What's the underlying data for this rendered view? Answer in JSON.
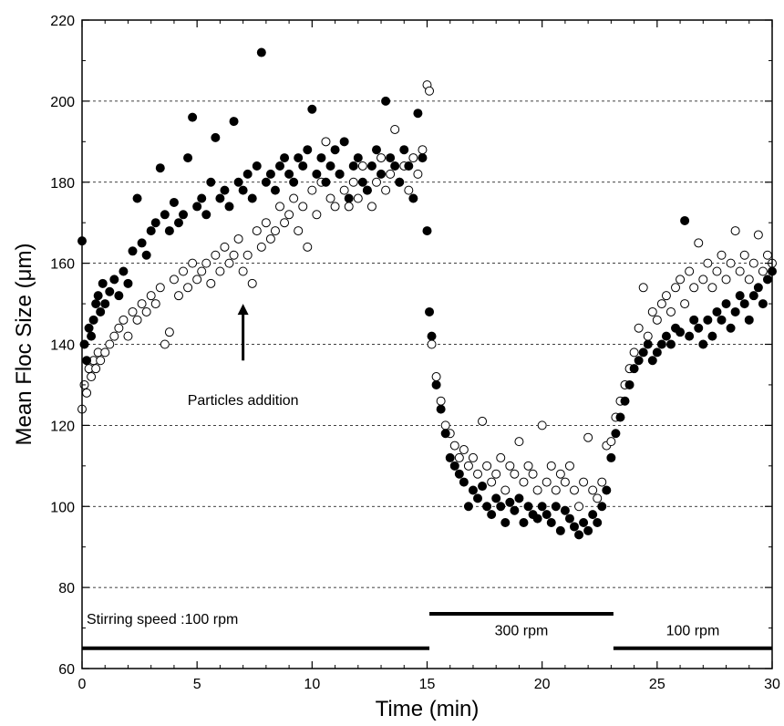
{
  "chart_data": {
    "type": "scatter",
    "title": "",
    "xlabel": "Time (min)",
    "ylabel": "Mean Floc Size (μm)",
    "xlim": [
      0,
      30
    ],
    "ylim": [
      60,
      220
    ],
    "xticks": [
      0,
      5,
      10,
      15,
      20,
      25,
      30
    ],
    "yticks": [
      60,
      80,
      100,
      120,
      140,
      160,
      180,
      200,
      220
    ],
    "grid": "horizontal dashed",
    "series": [
      {
        "marker": "filled-circle",
        "color": "#000000",
        "points": [
          [
            0.0,
            165.5
          ],
          [
            0.1,
            140
          ],
          [
            0.2,
            136
          ],
          [
            0.3,
            144
          ],
          [
            0.4,
            142
          ],
          [
            0.5,
            146
          ],
          [
            0.6,
            150
          ],
          [
            0.7,
            152
          ],
          [
            0.8,
            148
          ],
          [
            0.9,
            155
          ],
          [
            1.0,
            150
          ],
          [
            1.2,
            153
          ],
          [
            1.4,
            156
          ],
          [
            1.6,
            152
          ],
          [
            1.8,
            158
          ],
          [
            2.0,
            155
          ],
          [
            2.2,
            163
          ],
          [
            2.4,
            176
          ],
          [
            2.6,
            165
          ],
          [
            2.8,
            162
          ],
          [
            3.0,
            168
          ],
          [
            3.2,
            170
          ],
          [
            3.4,
            183.5
          ],
          [
            3.6,
            172
          ],
          [
            3.8,
            168
          ],
          [
            4.0,
            175
          ],
          [
            4.2,
            170
          ],
          [
            4.4,
            172
          ],
          [
            4.6,
            186
          ],
          [
            4.8,
            196
          ],
          [
            5.0,
            174
          ],
          [
            5.2,
            176
          ],
          [
            5.4,
            172
          ],
          [
            5.6,
            180
          ],
          [
            5.8,
            191
          ],
          [
            6.0,
            176
          ],
          [
            6.2,
            178
          ],
          [
            6.4,
            174
          ],
          [
            6.6,
            195
          ],
          [
            6.8,
            180
          ],
          [
            7.0,
            178
          ],
          [
            7.2,
            182
          ],
          [
            7.4,
            176
          ],
          [
            7.6,
            184
          ],
          [
            7.8,
            212
          ],
          [
            8.0,
            180
          ],
          [
            8.2,
            182
          ],
          [
            8.4,
            178
          ],
          [
            8.6,
            184
          ],
          [
            8.8,
            186
          ],
          [
            9.0,
            182
          ],
          [
            9.2,
            180
          ],
          [
            9.4,
            186
          ],
          [
            9.6,
            184
          ],
          [
            9.8,
            188
          ],
          [
            10.0,
            198
          ],
          [
            10.2,
            182
          ],
          [
            10.4,
            186
          ],
          [
            10.6,
            180
          ],
          [
            10.8,
            184
          ],
          [
            11.0,
            188
          ],
          [
            11.2,
            182
          ],
          [
            11.4,
            190
          ],
          [
            11.6,
            176
          ],
          [
            11.8,
            184
          ],
          [
            12.0,
            186
          ],
          [
            12.2,
            180
          ],
          [
            12.4,
            178
          ],
          [
            12.6,
            184
          ],
          [
            12.8,
            188
          ],
          [
            13.0,
            182
          ],
          [
            13.2,
            200
          ],
          [
            13.4,
            186
          ],
          [
            13.6,
            184
          ],
          [
            13.8,
            180
          ],
          [
            14.0,
            188
          ],
          [
            14.2,
            184
          ],
          [
            14.4,
            176
          ],
          [
            14.6,
            197
          ],
          [
            14.8,
            186
          ],
          [
            15.0,
            168
          ],
          [
            15.1,
            148
          ],
          [
            15.2,
            142
          ],
          [
            15.4,
            130
          ],
          [
            15.6,
            124
          ],
          [
            15.8,
            118
          ],
          [
            16.0,
            112
          ],
          [
            16.2,
            110
          ],
          [
            16.4,
            108
          ],
          [
            16.6,
            106
          ],
          [
            16.8,
            100
          ],
          [
            17.0,
            104
          ],
          [
            17.2,
            102
          ],
          [
            17.4,
            105
          ],
          [
            17.6,
            100
          ],
          [
            17.8,
            98
          ],
          [
            18.0,
            102
          ],
          [
            18.2,
            100
          ],
          [
            18.4,
            96
          ],
          [
            18.6,
            101
          ],
          [
            18.8,
            99
          ],
          [
            19.0,
            102
          ],
          [
            19.2,
            96
          ],
          [
            19.4,
            100
          ],
          [
            19.6,
            98
          ],
          [
            19.8,
            97
          ],
          [
            20.0,
            100
          ],
          [
            20.2,
            98
          ],
          [
            20.4,
            96
          ],
          [
            20.6,
            100
          ],
          [
            20.8,
            94
          ],
          [
            21.0,
            99
          ],
          [
            21.2,
            97
          ],
          [
            21.4,
            95
          ],
          [
            21.6,
            93
          ],
          [
            21.8,
            96
          ],
          [
            22.0,
            94
          ],
          [
            22.2,
            98
          ],
          [
            22.4,
            96
          ],
          [
            22.6,
            100
          ],
          [
            22.8,
            104
          ],
          [
            23.0,
            112
          ],
          [
            23.2,
            118
          ],
          [
            23.4,
            122
          ],
          [
            23.6,
            126
          ],
          [
            23.8,
            130
          ],
          [
            24.0,
            134
          ],
          [
            24.2,
            136
          ],
          [
            24.4,
            138
          ],
          [
            24.6,
            140
          ],
          [
            24.8,
            136
          ],
          [
            25.0,
            138
          ],
          [
            25.2,
            140
          ],
          [
            25.4,
            142
          ],
          [
            25.6,
            140
          ],
          [
            25.8,
            144
          ],
          [
            26.0,
            143
          ],
          [
            26.2,
            170.5
          ],
          [
            26.4,
            142
          ],
          [
            26.6,
            146
          ],
          [
            26.8,
            144
          ],
          [
            27.0,
            140
          ],
          [
            27.2,
            146
          ],
          [
            27.4,
            142
          ],
          [
            27.6,
            148
          ],
          [
            27.8,
            146
          ],
          [
            28.0,
            150
          ],
          [
            28.2,
            144
          ],
          [
            28.4,
            148
          ],
          [
            28.6,
            152
          ],
          [
            28.8,
            150
          ],
          [
            29.0,
            146
          ],
          [
            29.2,
            152
          ],
          [
            29.4,
            154
          ],
          [
            29.6,
            150
          ],
          [
            29.8,
            156
          ],
          [
            30.0,
            158
          ]
        ]
      },
      {
        "marker": "open-circle",
        "color": "#000000",
        "points": [
          [
            0.0,
            124
          ],
          [
            0.1,
            130
          ],
          [
            0.2,
            128
          ],
          [
            0.3,
            134
          ],
          [
            0.4,
            132
          ],
          [
            0.5,
            136
          ],
          [
            0.6,
            134
          ],
          [
            0.7,
            138
          ],
          [
            0.8,
            136
          ],
          [
            1.0,
            138
          ],
          [
            1.2,
            140
          ],
          [
            1.4,
            142
          ],
          [
            1.6,
            144
          ],
          [
            1.8,
            146
          ],
          [
            2.0,
            142
          ],
          [
            2.2,
            148
          ],
          [
            2.4,
            146
          ],
          [
            2.6,
            150
          ],
          [
            2.8,
            148
          ],
          [
            3.0,
            152
          ],
          [
            3.2,
            150
          ],
          [
            3.4,
            154
          ],
          [
            3.6,
            140
          ],
          [
            3.8,
            143
          ],
          [
            4.0,
            156
          ],
          [
            4.2,
            152
          ],
          [
            4.4,
            158
          ],
          [
            4.6,
            154
          ],
          [
            4.8,
            160
          ],
          [
            5.0,
            156
          ],
          [
            5.2,
            158
          ],
          [
            5.4,
            160
          ],
          [
            5.6,
            155
          ],
          [
            5.8,
            162
          ],
          [
            6.0,
            158
          ],
          [
            6.2,
            164
          ],
          [
            6.4,
            160
          ],
          [
            6.6,
            162
          ],
          [
            6.8,
            166
          ],
          [
            7.0,
            158
          ],
          [
            7.2,
            162
          ],
          [
            7.4,
            155
          ],
          [
            7.6,
            168
          ],
          [
            7.8,
            164
          ],
          [
            8.0,
            170
          ],
          [
            8.2,
            166
          ],
          [
            8.4,
            168
          ],
          [
            8.6,
            174
          ],
          [
            8.8,
            170
          ],
          [
            9.0,
            172
          ],
          [
            9.2,
            176
          ],
          [
            9.4,
            168
          ],
          [
            9.6,
            174
          ],
          [
            9.8,
            164
          ],
          [
            10.0,
            178
          ],
          [
            10.2,
            172
          ],
          [
            10.4,
            180
          ],
          [
            10.6,
            190
          ],
          [
            10.8,
            176
          ],
          [
            11.0,
            174
          ],
          [
            11.2,
            182
          ],
          [
            11.4,
            178
          ],
          [
            11.6,
            174
          ],
          [
            11.8,
            180
          ],
          [
            12.0,
            176
          ],
          [
            12.2,
            184
          ],
          [
            12.4,
            178
          ],
          [
            12.6,
            174
          ],
          [
            12.8,
            180
          ],
          [
            13.0,
            186
          ],
          [
            13.2,
            178
          ],
          [
            13.4,
            182
          ],
          [
            13.6,
            193
          ],
          [
            13.8,
            180
          ],
          [
            14.0,
            184
          ],
          [
            14.2,
            178
          ],
          [
            14.4,
            186
          ],
          [
            14.6,
            182
          ],
          [
            14.8,
            188
          ],
          [
            15.0,
            204
          ],
          [
            15.1,
            202.5
          ],
          [
            15.2,
            140
          ],
          [
            15.4,
            132
          ],
          [
            15.6,
            126
          ],
          [
            15.8,
            120
          ],
          [
            16.0,
            118
          ],
          [
            16.2,
            115
          ],
          [
            16.4,
            112
          ],
          [
            16.6,
            114
          ],
          [
            16.8,
            110
          ],
          [
            17.0,
            112
          ],
          [
            17.2,
            108
          ],
          [
            17.4,
            121
          ],
          [
            17.6,
            110
          ],
          [
            17.8,
            106
          ],
          [
            18.0,
            108
          ],
          [
            18.2,
            112
          ],
          [
            18.4,
            104
          ],
          [
            18.6,
            110
          ],
          [
            18.8,
            108
          ],
          [
            19.0,
            116
          ],
          [
            19.2,
            106
          ],
          [
            19.4,
            110
          ],
          [
            19.6,
            108
          ],
          [
            19.8,
            104
          ],
          [
            20.0,
            120
          ],
          [
            20.2,
            106
          ],
          [
            20.4,
            110
          ],
          [
            20.6,
            104
          ],
          [
            20.8,
            108
          ],
          [
            21.0,
            106
          ],
          [
            21.2,
            110
          ],
          [
            21.4,
            104
          ],
          [
            21.6,
            100
          ],
          [
            21.8,
            106
          ],
          [
            22.0,
            117
          ],
          [
            22.2,
            104
          ],
          [
            22.4,
            102
          ],
          [
            22.6,
            106
          ],
          [
            22.8,
            115
          ],
          [
            23.0,
            116
          ],
          [
            23.2,
            122
          ],
          [
            23.4,
            126
          ],
          [
            23.6,
            130
          ],
          [
            23.8,
            134
          ],
          [
            24.0,
            138
          ],
          [
            24.2,
            144
          ],
          [
            24.4,
            154
          ],
          [
            24.6,
            142
          ],
          [
            24.8,
            148
          ],
          [
            25.0,
            146
          ],
          [
            25.2,
            150
          ],
          [
            25.4,
            152
          ],
          [
            25.6,
            148
          ],
          [
            25.8,
            154
          ],
          [
            26.0,
            156
          ],
          [
            26.2,
            150
          ],
          [
            26.4,
            158
          ],
          [
            26.6,
            154
          ],
          [
            26.8,
            165
          ],
          [
            27.0,
            156
          ],
          [
            27.2,
            160
          ],
          [
            27.4,
            154
          ],
          [
            27.6,
            158
          ],
          [
            27.8,
            162
          ],
          [
            28.0,
            156
          ],
          [
            28.2,
            160
          ],
          [
            28.4,
            168
          ],
          [
            28.6,
            158
          ],
          [
            28.8,
            162
          ],
          [
            29.0,
            156
          ],
          [
            29.2,
            160
          ],
          [
            29.4,
            167
          ],
          [
            29.6,
            158
          ],
          [
            29.8,
            162
          ],
          [
            30.0,
            160
          ]
        ]
      }
    ],
    "annotations": [
      {
        "text": "Particles addition",
        "arrow_x": 7.0,
        "arrow_tail_y": 136,
        "arrow_head_y": 150,
        "text_y": 125
      }
    ],
    "speed_segments": [
      {
        "label": "Stirring speed :100 rpm",
        "x_start": 0,
        "x_end": 15.1,
        "bar_y": 65,
        "label_y": 71
      },
      {
        "label": "300 rpm",
        "x_start": 15.1,
        "x_end": 23.1,
        "bar_y": 73.5,
        "label_y": 68.2
      },
      {
        "label": "100 rpm",
        "x_start": 23.1,
        "x_end": 30,
        "bar_y": 65,
        "label_y": 68.2
      }
    ]
  }
}
